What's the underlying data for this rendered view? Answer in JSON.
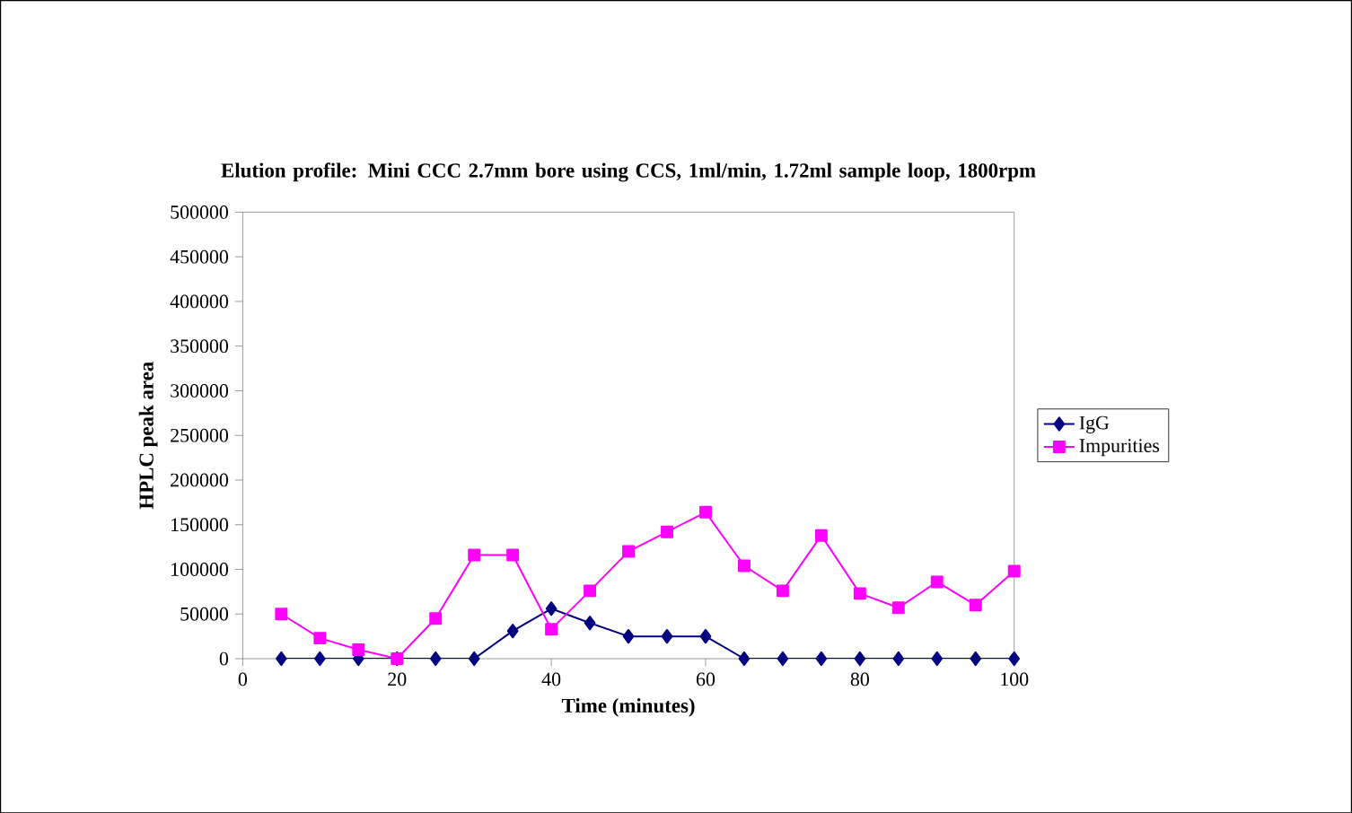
{
  "chart_data": {
    "type": "line",
    "title": "Elution profile: Mini CCC 2.7mm bore using CCS, 1ml/min, 1.72ml sample loop, 1800rpm",
    "xlabel": "Time (minutes)",
    "ylabel": "HPLC peak area",
    "x": [
      5,
      10,
      15,
      20,
      25,
      30,
      35,
      40,
      45,
      50,
      55,
      60,
      65,
      70,
      75,
      80,
      85,
      90,
      95,
      100
    ],
    "series": [
      {
        "name": "IgG",
        "color": "#000080",
        "marker": "diamond",
        "values": [
          0,
          0,
          0,
          0,
          0,
          0,
          31000,
          56000,
          40000,
          25000,
          25000,
          25000,
          0,
          0,
          0,
          0,
          0,
          0,
          0,
          0
        ]
      },
      {
        "name": "Impurities",
        "color": "#ff00ff",
        "marker": "square",
        "values": [
          50000,
          23000,
          10000,
          0,
          45000,
          116000,
          116000,
          33000,
          76000,
          120000,
          142000,
          164000,
          104000,
          76000,
          138000,
          73000,
          57000,
          86000,
          60000,
          98000
        ]
      }
    ],
    "xlim": [
      0,
      100
    ],
    "xticks": [
      0,
      20,
      40,
      60,
      80,
      100
    ],
    "ylim": [
      0,
      500000
    ],
    "yticks": [
      0,
      50000,
      100000,
      150000,
      200000,
      250000,
      300000,
      350000,
      400000,
      450000,
      500000
    ],
    "grid": false,
    "legend": "right"
  }
}
